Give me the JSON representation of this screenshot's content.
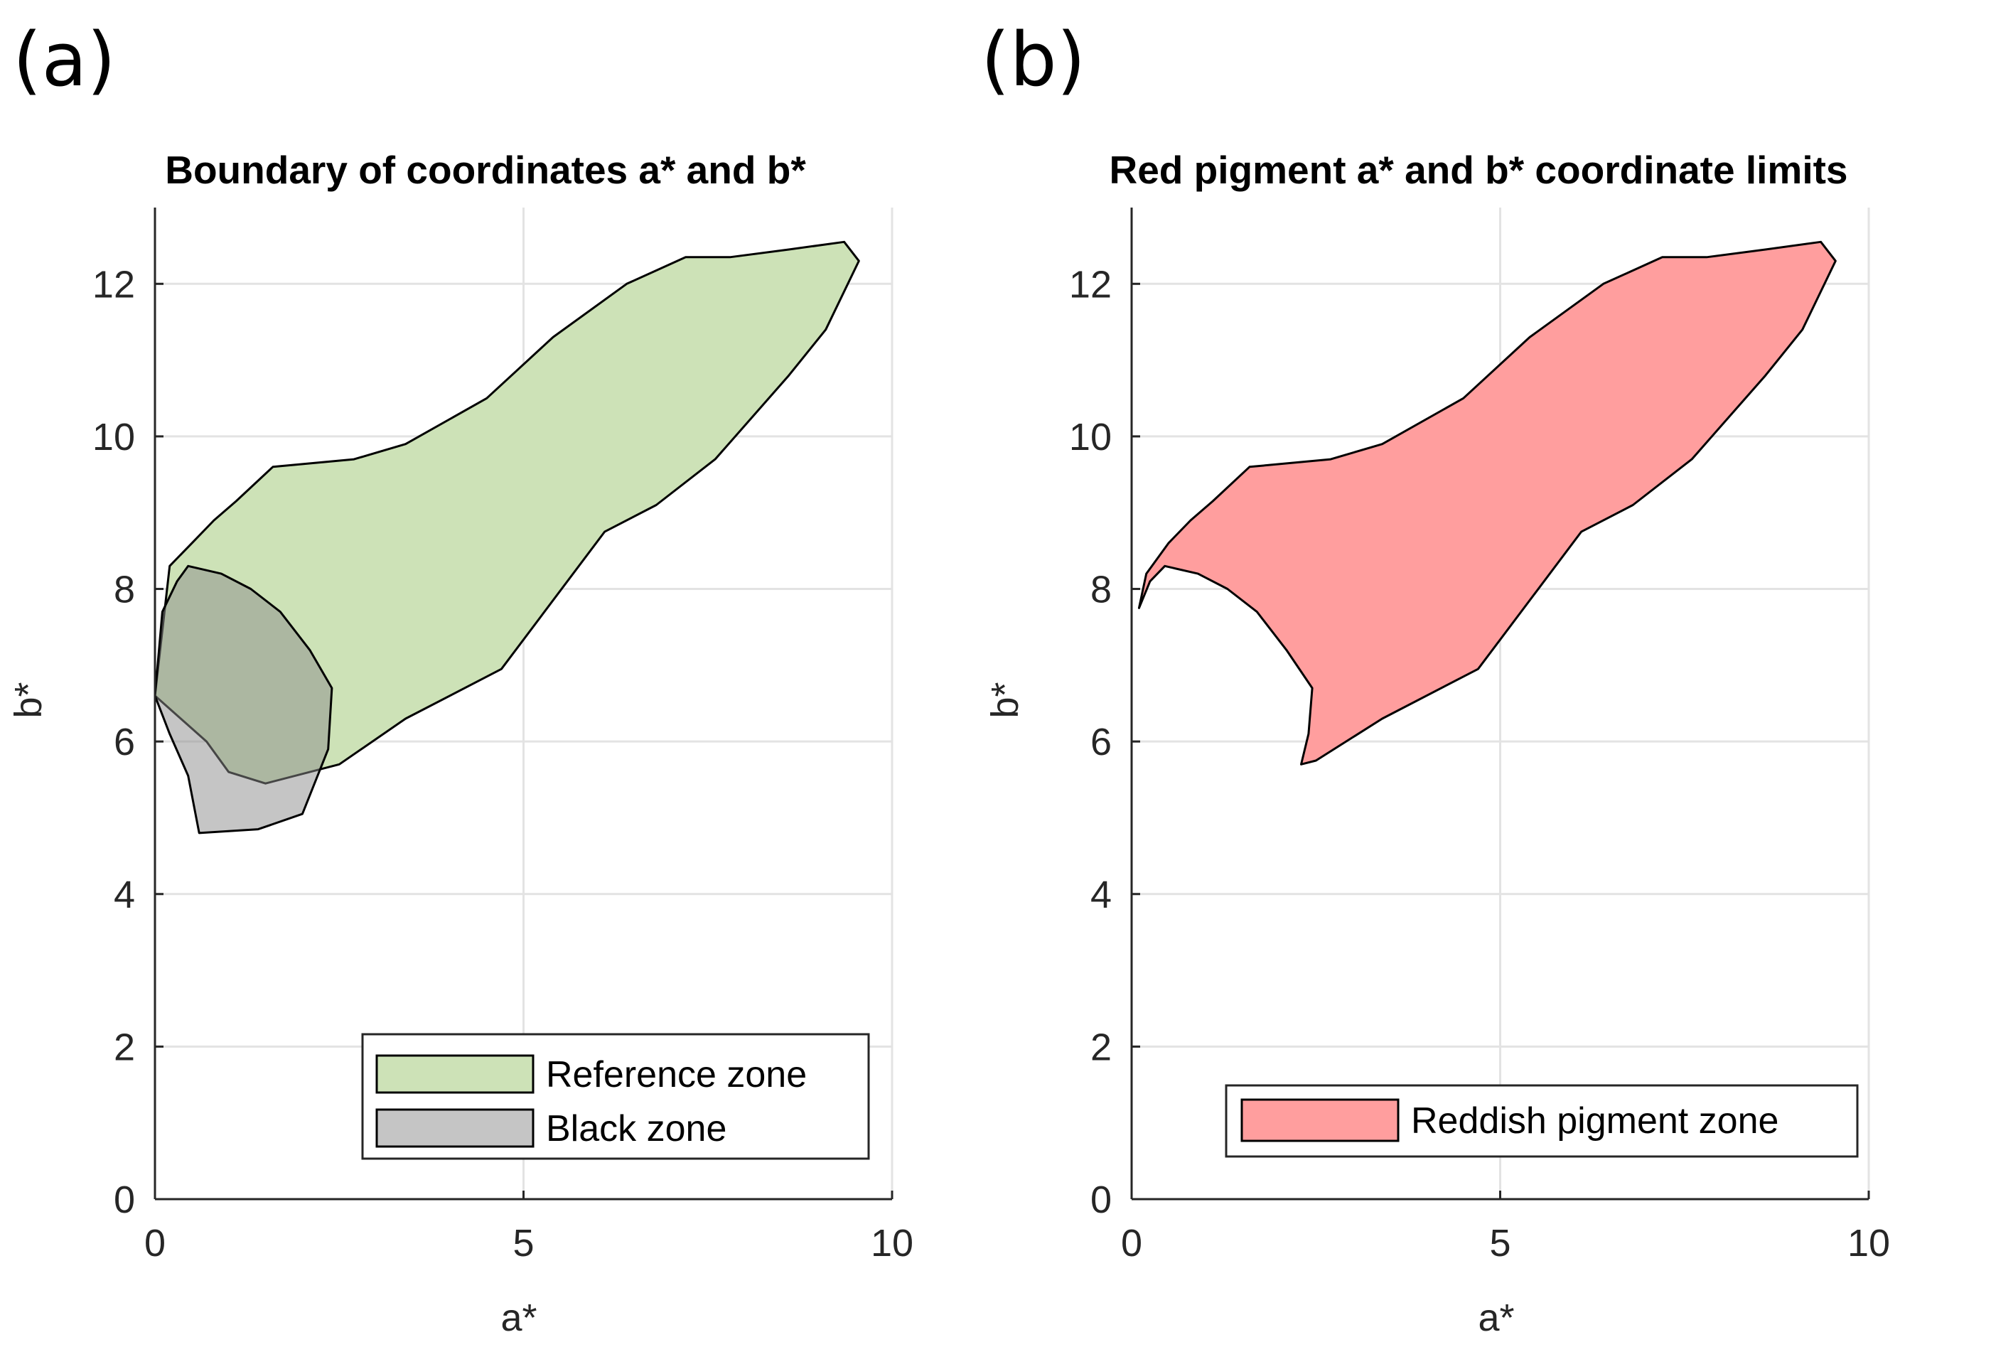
{
  "panel_labels": [
    "(a)",
    "(b)"
  ],
  "chart_data": [
    {
      "type": "area",
      "panel": "(a)",
      "title": "Boundary of coordinates a* and b*",
      "xlabel": "a*",
      "ylabel": "b*",
      "xlim": [
        0,
        10
      ],
      "ylim": [
        0,
        13
      ],
      "xticks": [
        0,
        5,
        10
      ],
      "yticks": [
        0,
        2,
        4,
        6,
        8,
        10,
        12
      ],
      "grid": true,
      "legend_position": "bottom-right",
      "series": [
        {
          "name": "Reference zone",
          "color": "#cde2b7",
          "opacity": 1,
          "points": [
            [
              0.0,
              6.6
            ],
            [
              0.2,
              8.3
            ],
            [
              0.5,
              8.6
            ],
            [
              0.8,
              8.9
            ],
            [
              1.1,
              9.15
            ],
            [
              1.6,
              9.6
            ],
            [
              2.7,
              9.7
            ],
            [
              3.4,
              9.9
            ],
            [
              4.5,
              10.5
            ],
            [
              5.4,
              11.3
            ],
            [
              6.4,
              12.0
            ],
            [
              7.2,
              12.35
            ],
            [
              7.8,
              12.35
            ],
            [
              8.6,
              12.45
            ],
            [
              9.35,
              12.55
            ],
            [
              9.55,
              12.3
            ],
            [
              9.1,
              11.4
            ],
            [
              8.6,
              10.8
            ],
            [
              7.6,
              9.7
            ],
            [
              6.8,
              9.1
            ],
            [
              6.1,
              8.75
            ],
            [
              4.7,
              6.95
            ],
            [
              3.4,
              6.3
            ],
            [
              2.5,
              5.7
            ],
            [
              1.5,
              5.45
            ],
            [
              1.0,
              5.6
            ],
            [
              0.7,
              6.0
            ],
            [
              0.35,
              6.3
            ],
            [
              0.0,
              6.6
            ]
          ]
        },
        {
          "name": "Black zone",
          "color": "#8c8c8c",
          "opacity": 0.5,
          "points": [
            [
              0.0,
              6.6
            ],
            [
              0.1,
              7.7
            ],
            [
              0.3,
              8.1
            ],
            [
              0.45,
              8.3
            ],
            [
              0.9,
              8.2
            ],
            [
              1.3,
              8.0
            ],
            [
              1.7,
              7.7
            ],
            [
              2.1,
              7.2
            ],
            [
              2.4,
              6.7
            ],
            [
              2.35,
              5.9
            ],
            [
              2.0,
              5.05
            ],
            [
              1.4,
              4.85
            ],
            [
              0.6,
              4.8
            ],
            [
              0.45,
              5.55
            ],
            [
              0.2,
              6.1
            ],
            [
              0.0,
              6.6
            ]
          ]
        }
      ]
    },
    {
      "type": "area",
      "panel": "(b)",
      "title": "Red pigment a* and b* coordinate limits",
      "xlabel": "a*",
      "ylabel": "b*",
      "xlim": [
        0,
        10
      ],
      "ylim": [
        0,
        13
      ],
      "xticks": [
        0,
        5,
        10
      ],
      "yticks": [
        0,
        2,
        4,
        6,
        8,
        10,
        12
      ],
      "grid": true,
      "legend_position": "bottom-right",
      "series": [
        {
          "name": "Reddish pigment zone",
          "color": "#ff9e9e",
          "opacity": 1,
          "points": [
            [
              0.1,
              7.75
            ],
            [
              0.2,
              8.2
            ],
            [
              0.5,
              8.6
            ],
            [
              0.8,
              8.9
            ],
            [
              1.1,
              9.15
            ],
            [
              1.6,
              9.6
            ],
            [
              2.7,
              9.7
            ],
            [
              3.4,
              9.9
            ],
            [
              4.5,
              10.5
            ],
            [
              5.4,
              11.3
            ],
            [
              6.4,
              12.0
            ],
            [
              7.2,
              12.35
            ],
            [
              7.8,
              12.35
            ],
            [
              8.6,
              12.45
            ],
            [
              9.35,
              12.55
            ],
            [
              9.55,
              12.3
            ],
            [
              9.1,
              11.4
            ],
            [
              8.6,
              10.8
            ],
            [
              7.6,
              9.7
            ],
            [
              6.8,
              9.1
            ],
            [
              6.1,
              8.75
            ],
            [
              4.7,
              6.95
            ],
            [
              3.4,
              6.3
            ],
            [
              2.5,
              5.75
            ],
            [
              2.3,
              5.7
            ],
            [
              2.4,
              6.1
            ],
            [
              2.45,
              6.7
            ],
            [
              2.1,
              7.2
            ],
            [
              1.7,
              7.7
            ],
            [
              1.3,
              8.0
            ],
            [
              0.9,
              8.2
            ],
            [
              0.45,
              8.3
            ],
            [
              0.25,
              8.1
            ],
            [
              0.1,
              7.75
            ]
          ]
        }
      ]
    }
  ]
}
